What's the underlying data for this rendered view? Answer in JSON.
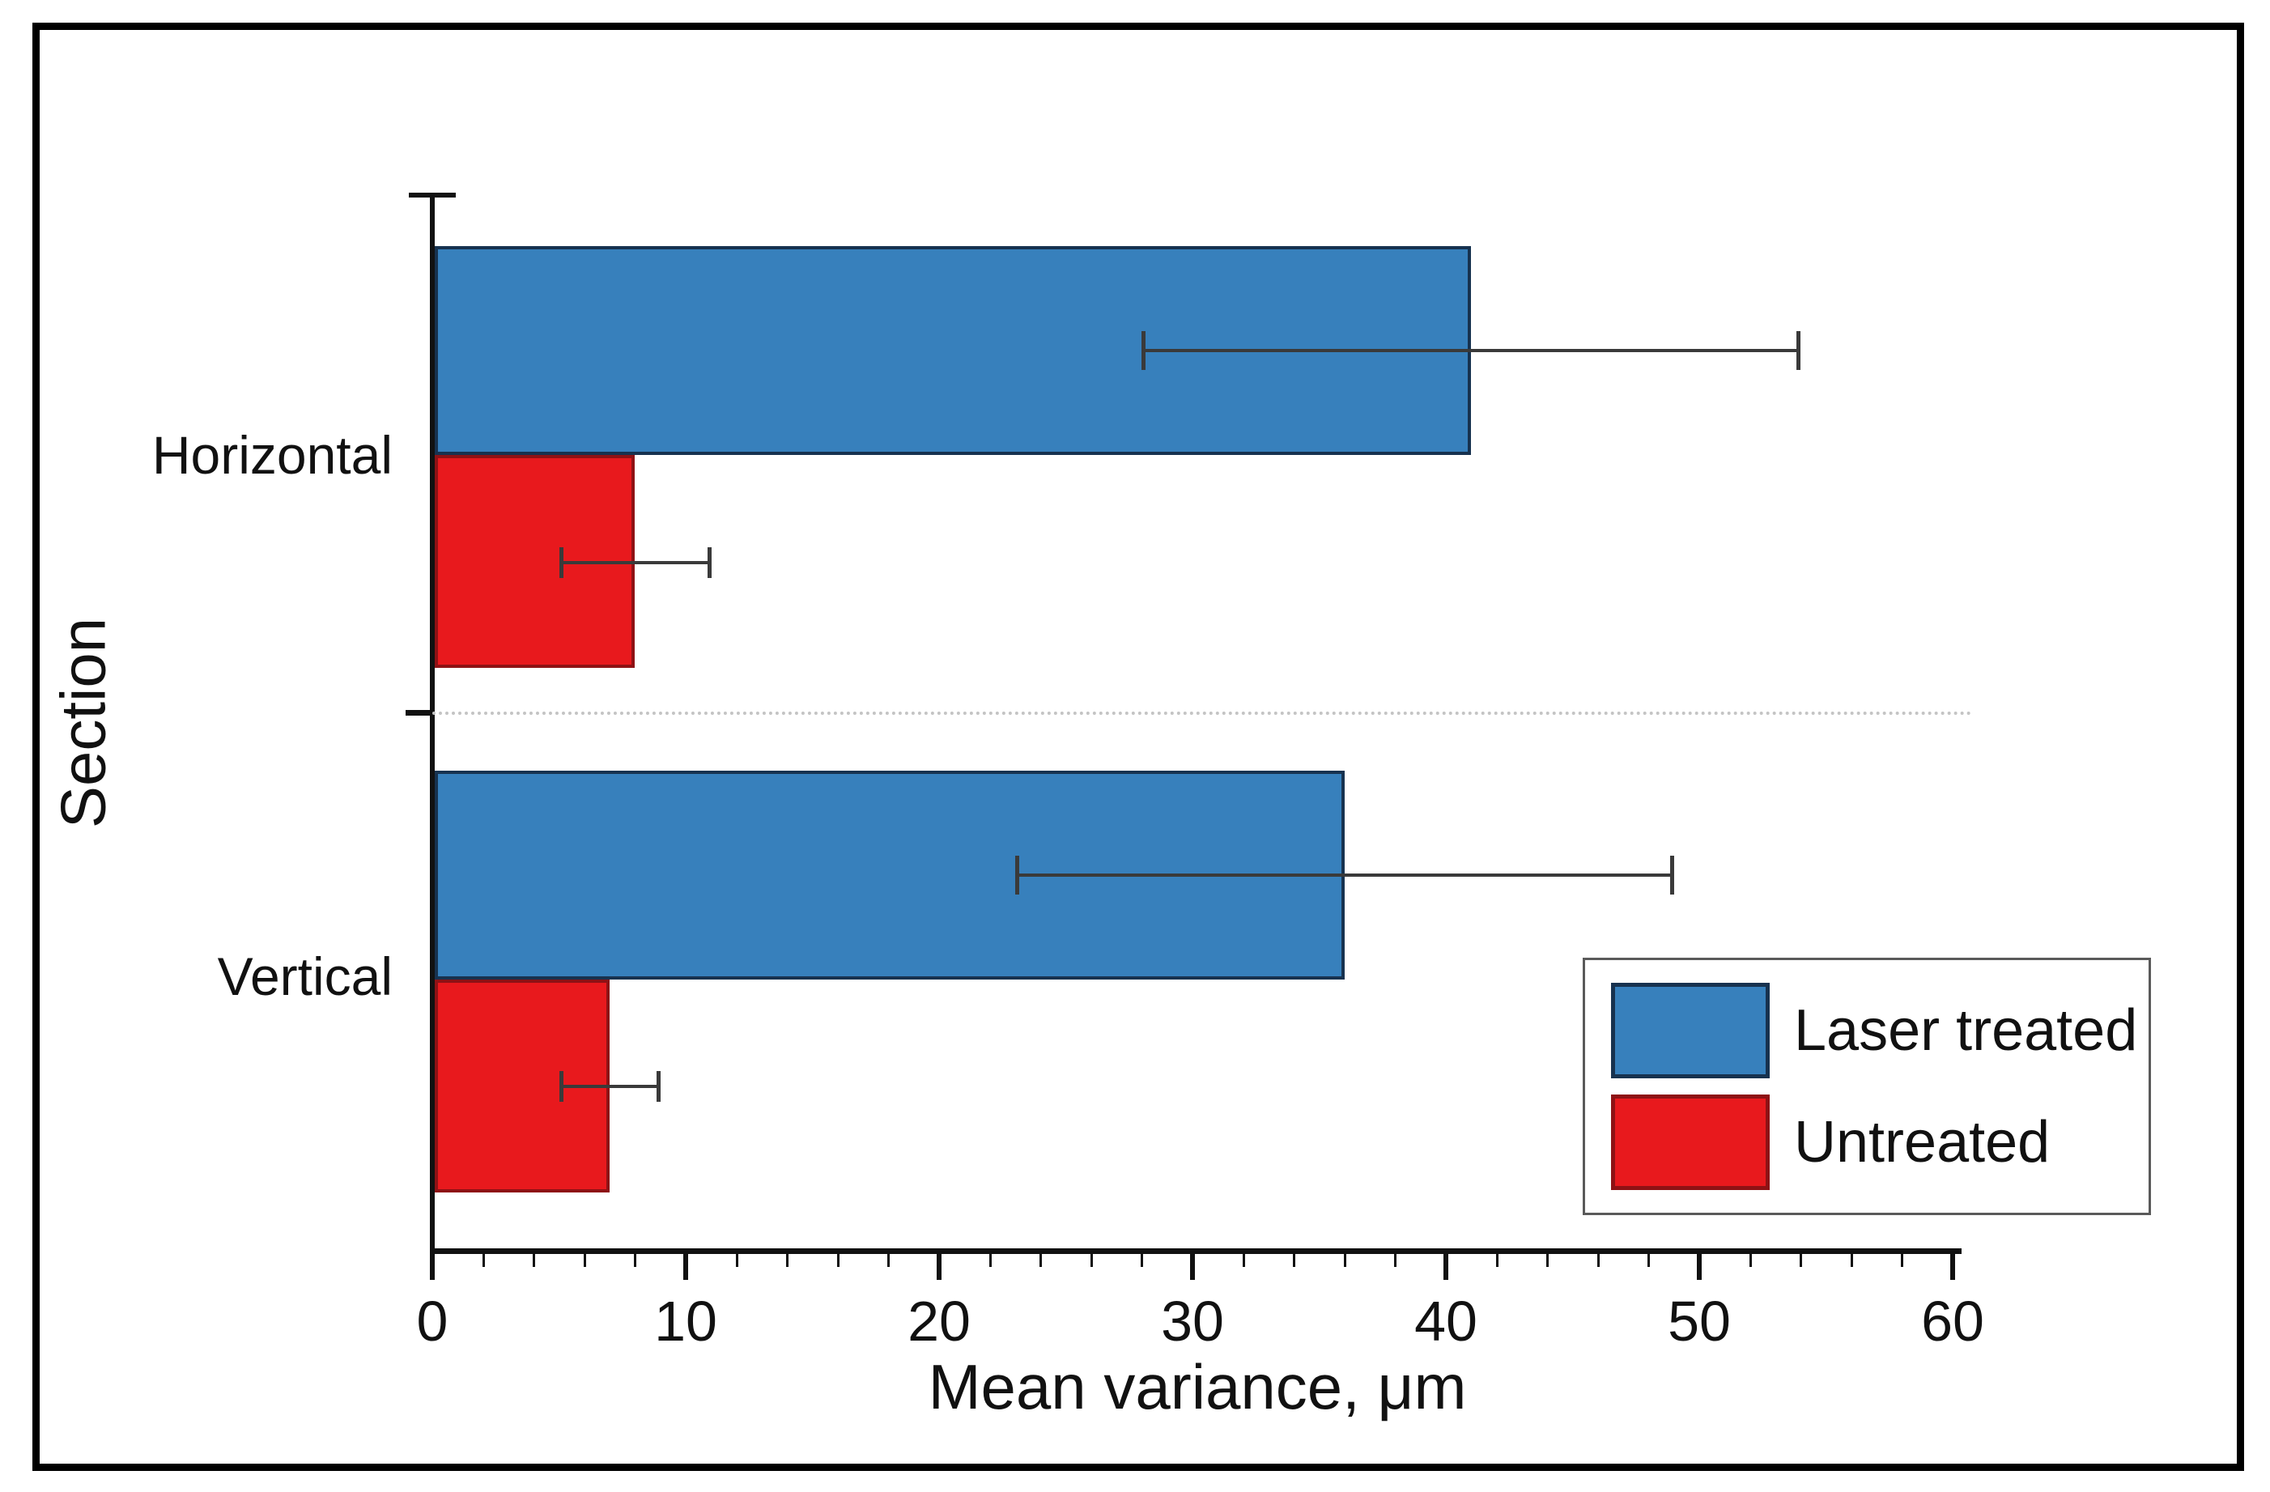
{
  "figure": {
    "background": "#ffffff",
    "frame_color": "#000000"
  },
  "chart_data": {
    "type": "bar",
    "orientation": "horizontal",
    "title": "",
    "xlabel": "Mean variance, μm",
    "ylabel": "Section",
    "categories": [
      "Horizontal",
      "Vertical"
    ],
    "series": [
      {
        "name": "Laser treated",
        "color": "#3780bc",
        "border_color": "#17324f",
        "values": [
          41,
          36
        ],
        "error_low": [
          28,
          23
        ],
        "error_high": [
          54,
          49
        ]
      },
      {
        "name": "Untreated",
        "color": "#e8191d",
        "border_color": "#8e1215",
        "values": [
          8,
          7
        ],
        "error_low": [
          5,
          5
        ],
        "error_high": [
          11,
          9
        ]
      }
    ],
    "xlim": [
      0,
      60
    ],
    "x_ticks": [
      0,
      10,
      20,
      30,
      40,
      50,
      60
    ],
    "x_minor_tick_step": 2,
    "error_bar_color": "#3a3a3a",
    "separator": "dotted line between category groups",
    "legend_position": "lower right"
  }
}
